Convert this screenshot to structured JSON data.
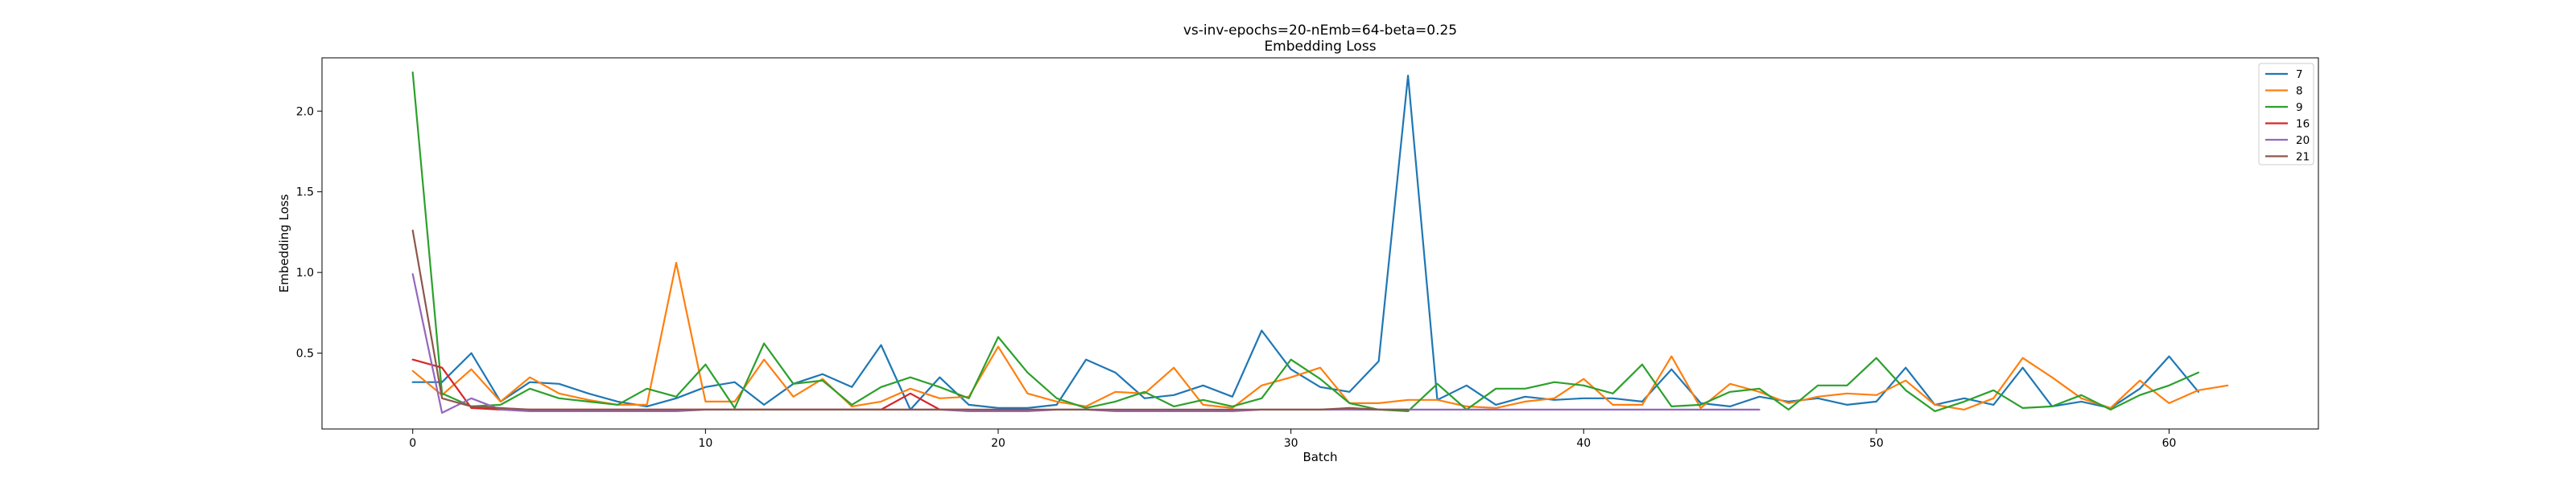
{
  "chart_data": {
    "type": "line",
    "title": "vs-inv-epochs=20-nEmb=64-beta=0.25",
    "subtitle": "Embedding Loss",
    "xlabel": "Batch",
    "ylabel": "Embedding Loss",
    "xlim": [
      -3.1,
      65.1
    ],
    "ylim": [
      0.03,
      2.33
    ],
    "xticks": [
      0,
      10,
      20,
      30,
      40,
      50,
      60
    ],
    "yticks": [
      0.5,
      1.0,
      1.5,
      2.0
    ],
    "ytick_labels": [
      "0.5",
      "1.0",
      "1.5",
      "2.0"
    ],
    "grid": false,
    "legend_position": "top-right",
    "series": [
      {
        "name": "7",
        "color": "#1f77b4",
        "values": [
          0.32,
          0.32,
          0.5,
          0.2,
          0.32,
          0.31,
          0.25,
          0.2,
          0.17,
          0.22,
          0.29,
          0.32,
          0.18,
          0.31,
          0.37,
          0.29,
          0.55,
          0.15,
          0.35,
          0.18,
          0.16,
          0.16,
          0.18,
          0.46,
          0.38,
          0.22,
          0.24,
          0.3,
          0.23,
          0.64,
          0.4,
          0.29,
          0.26,
          0.45,
          2.22,
          0.21,
          0.3,
          0.18,
          0.23,
          0.21,
          0.22,
          0.22,
          0.2,
          0.4,
          0.19,
          0.17,
          0.23,
          0.2,
          0.22,
          0.18,
          0.2,
          0.41,
          0.18,
          0.22,
          0.18,
          0.41,
          0.17,
          0.2,
          0.16,
          0.28,
          0.48,
          0.26
        ]
      },
      {
        "name": "8",
        "color": "#ff7f0e",
        "values": [
          0.39,
          0.24,
          0.4,
          0.2,
          0.35,
          0.25,
          0.21,
          0.18,
          0.18,
          1.06,
          0.2,
          0.2,
          0.46,
          0.23,
          0.34,
          0.17,
          0.2,
          0.28,
          0.22,
          0.23,
          0.54,
          0.25,
          0.2,
          0.17,
          0.26,
          0.25,
          0.41,
          0.18,
          0.16,
          0.3,
          0.35,
          0.41,
          0.19,
          0.19,
          0.21,
          0.21,
          0.17,
          0.16,
          0.2,
          0.22,
          0.34,
          0.18,
          0.18,
          0.48,
          0.16,
          0.31,
          0.26,
          0.19,
          0.23,
          0.25,
          0.24,
          0.33,
          0.18,
          0.15,
          0.22,
          0.47,
          0.35,
          0.22,
          0.16,
          0.33,
          0.19,
          0.27,
          0.3
        ]
      },
      {
        "name": "9",
        "color": "#2ca02c",
        "values": [
          2.24,
          0.25,
          0.17,
          0.18,
          0.28,
          0.22,
          0.2,
          0.18,
          0.28,
          0.23,
          0.43,
          0.16,
          0.56,
          0.31,
          0.33,
          0.18,
          0.29,
          0.35,
          0.29,
          0.22,
          0.6,
          0.38,
          0.22,
          0.16,
          0.2,
          0.26,
          0.17,
          0.21,
          0.17,
          0.22,
          0.46,
          0.34,
          0.19,
          0.15,
          0.14,
          0.31,
          0.15,
          0.28,
          0.28,
          0.32,
          0.3,
          0.25,
          0.43,
          0.17,
          0.18,
          0.26,
          0.28,
          0.15,
          0.3,
          0.3,
          0.47,
          0.27,
          0.14,
          0.2,
          0.27,
          0.16,
          0.17,
          0.24,
          0.15,
          0.24,
          0.3,
          0.38
        ]
      },
      {
        "name": "16",
        "color": "#d62728",
        "values": [
          0.46,
          0.41,
          0.16,
          0.15,
          0.15,
          0.15,
          0.15,
          0.15,
          0.15,
          0.15,
          0.15,
          0.15,
          0.15,
          0.15,
          0.15,
          0.15,
          0.15,
          0.25,
          0.15,
          0.15
        ]
      },
      {
        "name": "20",
        "color": "#9467bd",
        "values": [
          0.99,
          0.13,
          0.22,
          0.15,
          0.14,
          0.14,
          0.14,
          0.14,
          0.14,
          0.14,
          0.15,
          0.15,
          0.15,
          0.15,
          0.15,
          0.15,
          0.15,
          0.15,
          0.15,
          0.14,
          0.14,
          0.14,
          0.15,
          0.15,
          0.14,
          0.14,
          0.14,
          0.14,
          0.14,
          0.15,
          0.15,
          0.15,
          0.15,
          0.15,
          0.15,
          0.15,
          0.15,
          0.15,
          0.15,
          0.15,
          0.15,
          0.15,
          0.15,
          0.15,
          0.15,
          0.15,
          0.15
        ]
      },
      {
        "name": "21",
        "color": "#8c564b",
        "values": [
          1.26,
          0.22,
          0.17,
          0.16,
          0.15,
          0.15,
          0.15,
          0.15,
          0.15,
          0.15,
          0.15,
          0.15,
          0.15,
          0.15,
          0.15,
          0.15,
          0.15,
          0.15,
          0.15,
          0.15,
          0.15,
          0.15,
          0.15,
          0.15,
          0.15,
          0.15,
          0.15,
          0.15,
          0.15,
          0.15,
          0.15,
          0.15,
          0.16,
          0.15,
          0.15
        ]
      }
    ]
  }
}
